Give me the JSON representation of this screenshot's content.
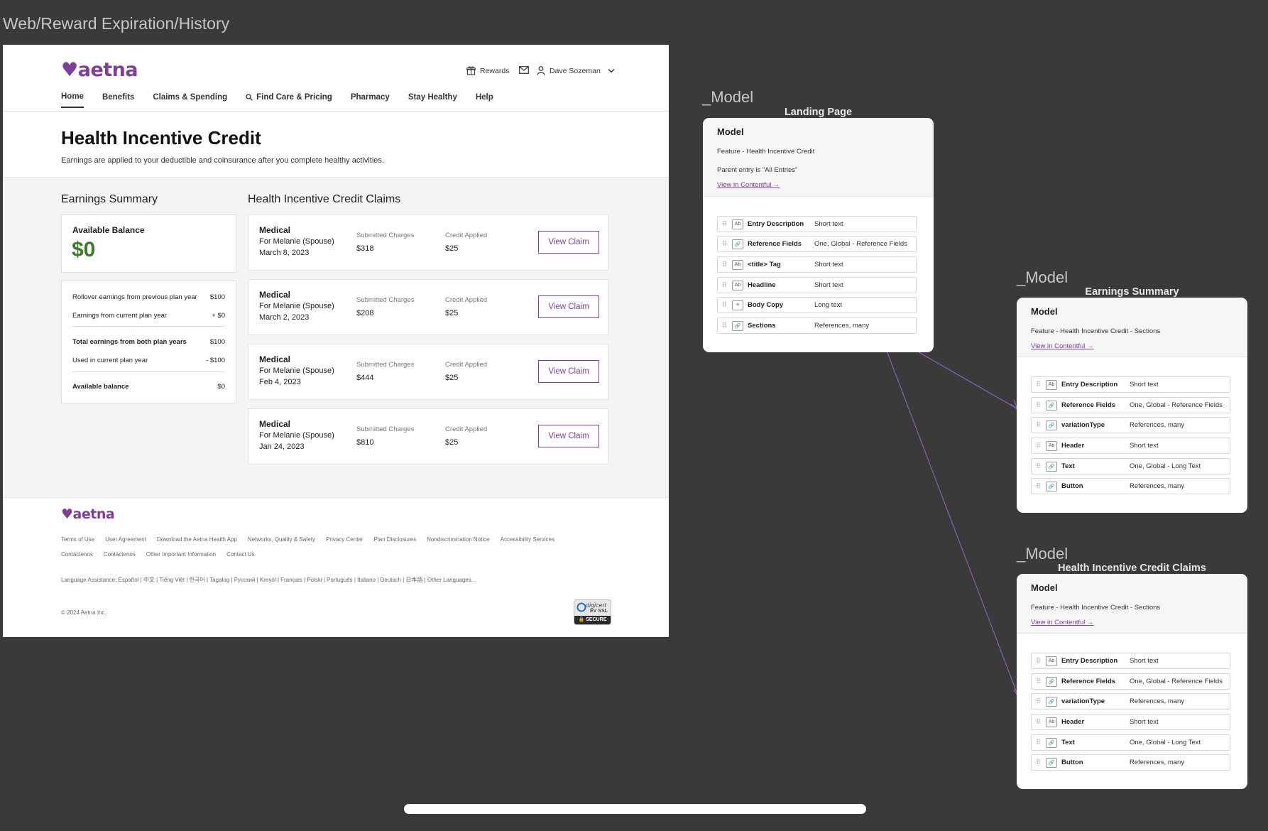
{
  "frame_title": "Web/Reward Expiration/History",
  "header": {
    "logo": "aetna",
    "rewards_label": "Rewards",
    "user_name": "Dave Sozeman",
    "nav": [
      "Home",
      "Benefits",
      "Claims & Spending",
      "Find Care & Pricing",
      "Pharmacy",
      "Stay Healthy",
      "Help"
    ]
  },
  "hero": {
    "title": "Health Incentive Credit",
    "subtitle": "Earnings are applied to your deductible and coinsurance after you complete healthy activities."
  },
  "earnings": {
    "title": "Earnings Summary",
    "balance_label": "Available Balance",
    "balance_value": "$0",
    "rows": [
      {
        "label": "Rollover earnings from previous plan year",
        "value": "$100"
      },
      {
        "label": "Earnings from current plan year",
        "value": "+ $0"
      },
      {
        "label": "Total earnings from both plan years",
        "value": "$100"
      },
      {
        "label": "Used in current plan year",
        "value": "- $100"
      },
      {
        "label": "Available balance",
        "value": "$0"
      }
    ]
  },
  "claims": {
    "title": "Health Incentive Credit Claims",
    "submitted_label": "Submitted Charges",
    "credit_label": "Credit Applied",
    "button_label": "View Claim",
    "items": [
      {
        "type": "Medical",
        "for": "For Melanie (Spouse)",
        "date": "March 8, 2023",
        "submitted": "$318",
        "credit": "$25"
      },
      {
        "type": "Medical",
        "for": "For Melanie (Spouse)",
        "date": "March 2, 2023",
        "submitted": "$208",
        "credit": "$25"
      },
      {
        "type": "Medical",
        "for": "For Melanie (Spouse)",
        "date": "Feb 4, 2023",
        "submitted": "$444",
        "credit": "$25"
      },
      {
        "type": "Medical",
        "for": "For Melanie (Spouse)",
        "date": "Jan 24, 2023",
        "submitted": "$810",
        "credit": "$25"
      }
    ]
  },
  "footer": {
    "logo": "aetna",
    "links_row1": [
      "Terms of Use",
      "User Agreement",
      "Download the Aetna Health App",
      "Networks, Quality & Safety",
      "Privacy Center",
      "Plan Disclosures",
      "Nondiscrimination Notice",
      "Accessibility Services"
    ],
    "links_row2": [
      "Contáctenos",
      "Contáctenos",
      "Other Important Information",
      "Contact Us"
    ],
    "language": "Language Assistance: Español | 中文 | Tiếng Việt | 한국어 | Tagalog | Русский | Kreyòl | Français | Polski | Português | Italiano | Deutsch | 日本語 | Other Languages...",
    "copyright": "© 2024 Aetna Inc.",
    "badge_top": "digicert",
    "badge_mid": "EV SSL",
    "badge_bottom": "SECURE"
  },
  "models": [
    {
      "label": "_Model",
      "subtitle": "Landing Page",
      "card_title": "Model",
      "feature": "Feature - Health Incentive Credit",
      "parent": "Parent entry is \"All Entries\"",
      "link": "View in Contentful →",
      "fields": [
        {
          "name": "Entry Description",
          "type": "Short text",
          "icon": "Ab"
        },
        {
          "name": "Reference Fields",
          "type": "One, Global - Reference Fields",
          "icon": "ref"
        },
        {
          "name": "<title> Tag",
          "type": "Short text",
          "icon": "Ab"
        },
        {
          "name": "Headline",
          "type": "Short text",
          "icon": "Ab"
        },
        {
          "name": "Body Copy",
          "type": "Long text",
          "icon": "long"
        },
        {
          "name": "Sections",
          "type": "References, many",
          "icon": "ref"
        }
      ]
    },
    {
      "label": "_Model",
      "subtitle": "Earnings Summary",
      "card_title": "Model",
      "feature": "Feature - Health Incentive Credit - Sections",
      "link": "View in Contentful →",
      "fields": [
        {
          "name": "Entry Description",
          "type": "Short text",
          "icon": "Ab"
        },
        {
          "name": "Reference Fields",
          "type": "One, Global - Reference Fields",
          "icon": "ref"
        },
        {
          "name": "variationType",
          "type": "References, many",
          "icon": "ref"
        },
        {
          "name": "Header",
          "type": "Short text",
          "icon": "Ab"
        },
        {
          "name": "Text",
          "type": "One, Global - Long Text",
          "icon": "ref"
        },
        {
          "name": "Button",
          "type": "References, many",
          "icon": "ref"
        }
      ]
    },
    {
      "label": "_Model",
      "subtitle": "Health Incentive Credit Claims",
      "card_title": "Model",
      "feature": "Feature - Health Incentive Credit - Sections",
      "link": "View in Contentful →",
      "fields": [
        {
          "name": "Entry Description",
          "type": "Short text",
          "icon": "Ab"
        },
        {
          "name": "Reference Fields",
          "type": "One, Global - Reference Fields",
          "icon": "ref"
        },
        {
          "name": "variationType",
          "type": "References, many",
          "icon": "ref"
        },
        {
          "name": "Header",
          "type": "Short text",
          "icon": "Ab"
        },
        {
          "name": "Text",
          "type": "One, Global - Long Text",
          "icon": "ref"
        },
        {
          "name": "Button",
          "type": "References, many",
          "icon": "ref"
        }
      ]
    }
  ],
  "colors": {
    "brand": "#7d3f98",
    "balance": "#3a7d2c",
    "canvas": "#3a3a3a",
    "connector": "#8a5fb5"
  }
}
